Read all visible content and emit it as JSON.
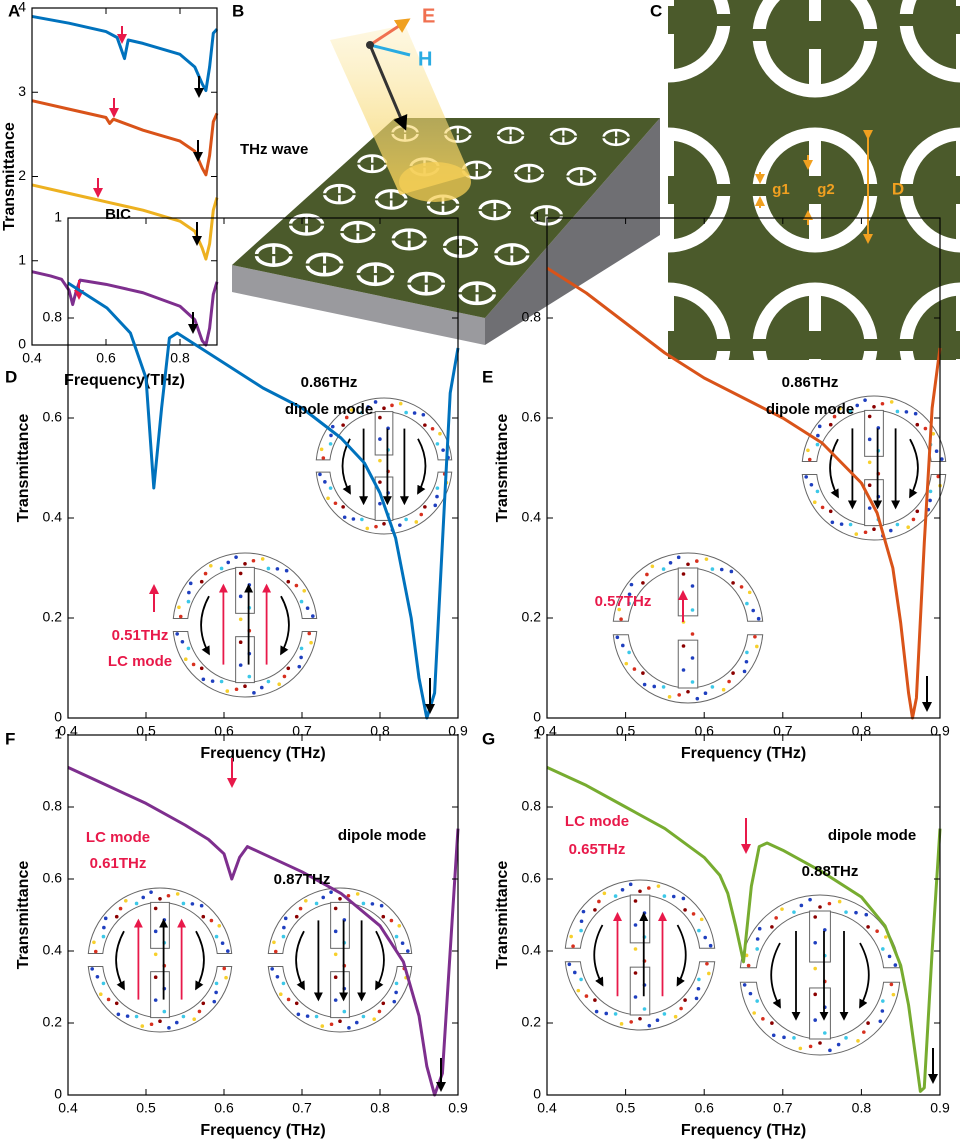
{
  "chart_data": [
    {
      "panel": "A",
      "type": "line",
      "xlabel": "Frequency(THz)",
      "ylabel": "Transmittance",
      "xlim": [
        0.4,
        0.9
      ],
      "ylim": [
        0,
        4
      ],
      "xticks": [
        0.4,
        0.6,
        0.8
      ],
      "yticks": [
        0,
        1,
        2,
        3,
        4
      ],
      "series": [
        {
          "color": "#0072bd",
          "x": [
            0.4,
            0.5,
            0.6,
            0.63,
            0.65,
            0.66,
            0.7,
            0.8,
            0.84,
            0.86,
            0.87,
            0.88,
            0.89,
            0.9
          ],
          "values": [
            3.9,
            3.82,
            3.72,
            3.65,
            3.4,
            3.62,
            3.58,
            3.45,
            3.3,
            3.1,
            3.02,
            3.3,
            3.7,
            3.75
          ]
        },
        {
          "color": "#d95319",
          "x": [
            0.4,
            0.5,
            0.6,
            0.61,
            0.62,
            0.7,
            0.8,
            0.84,
            0.86,
            0.87,
            0.88,
            0.89,
            0.9
          ],
          "values": [
            2.9,
            2.8,
            2.7,
            2.63,
            2.68,
            2.55,
            2.42,
            2.3,
            2.1,
            2.02,
            2.25,
            2.65,
            2.75
          ]
        },
        {
          "color": "#edb120",
          "x": [
            0.4,
            0.5,
            0.57,
            0.6,
            0.7,
            0.8,
            0.84,
            0.86,
            0.87,
            0.88,
            0.89,
            0.9
          ],
          "values": [
            1.9,
            1.8,
            1.73,
            1.7,
            1.6,
            1.47,
            1.35,
            1.15,
            1.02,
            1.2,
            1.6,
            1.75
          ]
        },
        {
          "color": "#7e2f8e",
          "x": [
            0.4,
            0.45,
            0.48,
            0.5,
            0.51,
            0.52,
            0.53,
            0.6,
            0.7,
            0.8,
            0.84,
            0.86,
            0.87,
            0.88,
            0.89,
            0.9
          ],
          "values": [
            0.87,
            0.82,
            0.78,
            0.65,
            0.48,
            0.65,
            0.77,
            0.72,
            0.62,
            0.46,
            0.3,
            0.05,
            0.0,
            0.2,
            0.6,
            0.75
          ]
        }
      ],
      "annotations": [
        {
          "text": "BIC",
          "color": "#000000"
        }
      ]
    },
    {
      "panel": "D",
      "type": "line",
      "xlabel": "Frequency (THz)",
      "ylabel": "Transmittance",
      "xlim": [
        0.4,
        0.9
      ],
      "ylim": [
        0,
        1
      ],
      "xticks": [
        0.4,
        0.5,
        0.6,
        0.7,
        0.8,
        0.9
      ],
      "yticks": [
        0,
        0.2,
        0.4,
        0.6,
        0.8,
        1
      ],
      "series": [
        {
          "color": "#0072bd",
          "x": [
            0.4,
            0.45,
            0.48,
            0.5,
            0.51,
            0.52,
            0.53,
            0.54,
            0.56,
            0.6,
            0.65,
            0.7,
            0.75,
            0.78,
            0.8,
            0.82,
            0.84,
            0.85,
            0.86,
            0.87,
            0.88,
            0.89,
            0.9
          ],
          "values": [
            0.87,
            0.82,
            0.77,
            0.68,
            0.46,
            0.62,
            0.76,
            0.77,
            0.75,
            0.71,
            0.66,
            0.62,
            0.56,
            0.51,
            0.45,
            0.36,
            0.2,
            0.08,
            0.0,
            0.05,
            0.35,
            0.65,
            0.74
          ]
        }
      ],
      "annotations": [
        {
          "text": "0.86THz",
          "color": "#000000"
        },
        {
          "text": "dipole mode",
          "color": "#000000"
        },
        {
          "text": "0.51THz",
          "color": "#e8194a"
        },
        {
          "text": "LC mode",
          "color": "#e8194a"
        }
      ]
    },
    {
      "panel": "E",
      "type": "line",
      "xlabel": "Frequency (THz)",
      "ylabel": "Transmittance",
      "xlim": [
        0.4,
        0.9
      ],
      "ylim": [
        0,
        1
      ],
      "xticks": [
        0.4,
        0.5,
        0.6,
        0.7,
        0.8,
        0.9
      ],
      "yticks": [
        0,
        0.2,
        0.4,
        0.6,
        0.8,
        1
      ],
      "series": [
        {
          "color": "#d95319",
          "x": [
            0.4,
            0.45,
            0.5,
            0.55,
            0.57,
            0.58,
            0.6,
            0.65,
            0.7,
            0.75,
            0.8,
            0.82,
            0.84,
            0.85,
            0.86,
            0.865,
            0.87,
            0.88,
            0.89,
            0.9
          ],
          "values": [
            0.9,
            0.85,
            0.79,
            0.73,
            0.71,
            0.7,
            0.68,
            0.64,
            0.6,
            0.55,
            0.47,
            0.41,
            0.3,
            0.19,
            0.05,
            0.0,
            0.04,
            0.35,
            0.62,
            0.74
          ]
        }
      ],
      "annotations": [
        {
          "text": "0.86THz",
          "color": "#000000"
        },
        {
          "text": "dipole mode",
          "color": "#000000"
        },
        {
          "text": "0.57THz",
          "color": "#e8194a"
        }
      ]
    },
    {
      "panel": "F",
      "type": "line",
      "xlabel": "Frequency (THz)",
      "ylabel": "Transmittance",
      "xlim": [
        0.4,
        0.9
      ],
      "ylim": [
        0,
        1
      ],
      "xticks": [
        0.4,
        0.5,
        0.6,
        0.7,
        0.8,
        0.9
      ],
      "yticks": [
        0,
        0.2,
        0.4,
        0.6,
        0.8,
        1
      ],
      "series": [
        {
          "color": "#7e2f8e",
          "x": [
            0.4,
            0.45,
            0.5,
            0.55,
            0.58,
            0.6,
            0.61,
            0.62,
            0.63,
            0.65,
            0.7,
            0.75,
            0.8,
            0.83,
            0.85,
            0.86,
            0.87,
            0.88,
            0.89,
            0.9
          ],
          "values": [
            0.91,
            0.86,
            0.81,
            0.75,
            0.71,
            0.67,
            0.6,
            0.66,
            0.69,
            0.67,
            0.62,
            0.56,
            0.47,
            0.37,
            0.22,
            0.08,
            0.0,
            0.06,
            0.4,
            0.74
          ]
        }
      ],
      "annotations": [
        {
          "text": "LC mode",
          "color": "#e8194a"
        },
        {
          "text": "0.61THz",
          "color": "#e8194a"
        },
        {
          "text": "0.87THz",
          "color": "#000000"
        },
        {
          "text": "dipole mode",
          "color": "#000000"
        }
      ]
    },
    {
      "panel": "G",
      "type": "line",
      "xlabel": "Frequency (THz)",
      "ylabel": "Transmittance",
      "xlim": [
        0.4,
        0.9
      ],
      "ylim": [
        0,
        1
      ],
      "xticks": [
        0.4,
        0.5,
        0.6,
        0.7,
        0.8,
        0.9
      ],
      "yticks": [
        0,
        0.2,
        0.4,
        0.6,
        0.8,
        1
      ],
      "series": [
        {
          "color": "#77ac30",
          "x": [
            0.4,
            0.45,
            0.5,
            0.55,
            0.6,
            0.62,
            0.63,
            0.64,
            0.65,
            0.66,
            0.67,
            0.68,
            0.7,
            0.75,
            0.8,
            0.83,
            0.85,
            0.86,
            0.87,
            0.875,
            0.88,
            0.89,
            0.9
          ],
          "values": [
            0.91,
            0.86,
            0.8,
            0.74,
            0.66,
            0.61,
            0.56,
            0.47,
            0.37,
            0.58,
            0.69,
            0.7,
            0.68,
            0.62,
            0.55,
            0.47,
            0.36,
            0.25,
            0.09,
            0.01,
            0.02,
            0.4,
            0.74
          ]
        }
      ],
      "annotations": [
        {
          "text": "LC mode",
          "color": "#e8194a"
        },
        {
          "text": "0.65THz",
          "color": "#e8194a"
        },
        {
          "text": "0.88THz",
          "color": "#000000"
        },
        {
          "text": "dipole mode",
          "color": "#000000"
        }
      ]
    }
  ],
  "diagrams": {
    "b": {
      "panel": "B",
      "labels": [
        "E",
        "H",
        "THz wave"
      ]
    },
    "c": {
      "panel": "C",
      "labels": [
        "g1",
        "g2",
        "D"
      ]
    }
  }
}
